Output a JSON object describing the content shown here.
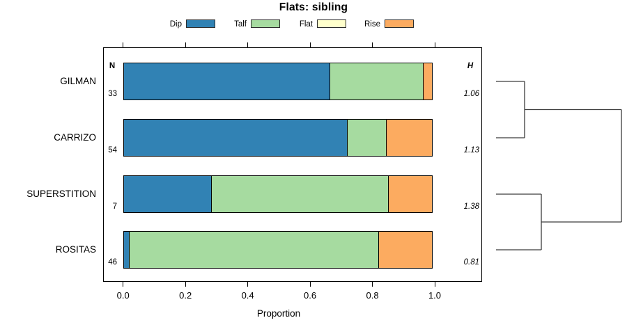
{
  "chart_data": {
    "type": "bar",
    "variant": "horizontal-stacked-proportion",
    "title": "Flats: sibling",
    "xlabel": "Proportion",
    "xlim": [
      0,
      1
    ],
    "x_ticks": [
      "0.0",
      "0.2",
      "0.4",
      "0.6",
      "0.8",
      "1.0"
    ],
    "x_tick_values": [
      0,
      0.2,
      0.4,
      0.6,
      0.8,
      1.0
    ],
    "grid": false,
    "n_header": "N",
    "h_header": "H",
    "legend": [
      {
        "label": "Dip",
        "color": "#3182b4"
      },
      {
        "label": "Talf",
        "color": "#a6dba0"
      },
      {
        "label": "Flat",
        "color": "#ffffcc"
      },
      {
        "label": "Rise",
        "color": "#fcab60"
      }
    ],
    "rows": [
      {
        "category": "GILMAN",
        "n": "33",
        "h": "1.06",
        "proportions": [
          0.667,
          0.303,
          0,
          0.03
        ]
      },
      {
        "category": "CARRIZO",
        "n": "54",
        "h": "1.13",
        "proportions": [
          0.722,
          0.13,
          0,
          0.148
        ]
      },
      {
        "category": "SUPERSTITION",
        "n": "7",
        "h": "1.38",
        "proportions": [
          0.286,
          0.571,
          0,
          0.143
        ]
      },
      {
        "category": "ROSITAS",
        "n": "46",
        "h": "0.81",
        "proportions": [
          0.022,
          0.804,
          0,
          0.174
        ]
      }
    ],
    "dendrogram": {
      "side": "right",
      "line_color": "#3c3c3c",
      "clusters": [
        {
          "members": [
            "GILMAN",
            "CARRIZO"
          ],
          "join_height": 41
        },
        {
          "members": [
            "SUPERSTITION",
            "ROSITAS"
          ],
          "join_height": 65
        }
      ],
      "root_height": 180
    }
  }
}
